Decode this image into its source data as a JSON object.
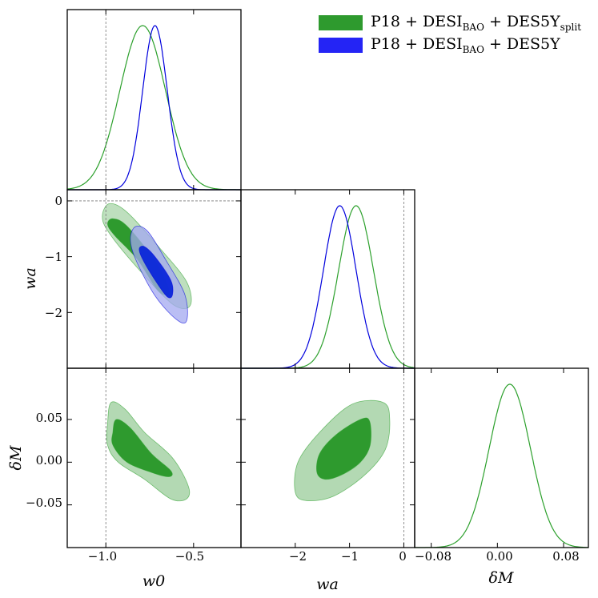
{
  "chart_data": {
    "type": "triangle",
    "parameters": [
      "w_0",
      "w_a",
      "δM"
    ],
    "axis_labels": {
      "w0": "w0",
      "wa": "wa",
      "dM": "δM"
    },
    "ranges": {
      "w0": [
        -1.22,
        -0.23
      ],
      "wa": [
        -3.0,
        0.2
      ],
      "dM": [
        -0.1,
        0.11
      ]
    },
    "ticks": {
      "w0": [
        {
          "v": -1.0,
          "label": "−1.0"
        },
        {
          "v": -0.5,
          "label": "−0.5"
        }
      ],
      "wa_left": [
        {
          "v": 0,
          "label": "0"
        },
        {
          "v": -1,
          "label": "−1"
        },
        {
          "v": -2,
          "label": "−2"
        }
      ],
      "wa_bottom": [
        {
          "v": -2,
          "label": "−2"
        },
        {
          "v": -1,
          "label": "−1"
        },
        {
          "v": 0,
          "label": "0"
        }
      ],
      "dM_left": [
        {
          "v": 0.05,
          "label": "0.05"
        },
        {
          "v": 0.0,
          "label": "0.00"
        },
        {
          "v": -0.05,
          "label": "−0.05"
        }
      ],
      "dM_bottom": [
        {
          "v": -0.08,
          "label": "−0.08"
        },
        {
          "v": 0.0,
          "label": "0.00"
        },
        {
          "v": 0.08,
          "label": "0.08"
        }
      ]
    },
    "reference_lines": {
      "w0": -1.0,
      "wa": 0.0
    },
    "series": [
      {
        "name": "P18 + DESI_BAO + DES5Y_split",
        "label_main": "P18 + DESI",
        "label_sub1": "BAO",
        "label_mid": " + DES5Y",
        "label_sub2": "split",
        "color": "#2ca02c",
        "fill_inner": "#2e9a2e",
        "fill_outer": "#b3d9b3",
        "w0": {
          "mean": -0.79,
          "sd": 0.13
        },
        "wa": {
          "mean": -0.88,
          "sd": 0.32
        },
        "dM": {
          "mean": 0.015,
          "sd": 0.025
        },
        "contours": {
          "w0_wa": {
            "inner": [
              [
                -0.99,
                -0.42
              ],
              [
                -0.96,
                -0.32
              ],
              [
                -0.88,
                -0.45
              ],
              [
                -0.72,
                -1.08
              ],
              [
                -0.64,
                -1.62
              ],
              [
                -0.7,
                -1.62
              ],
              [
                -0.82,
                -1.05
              ],
              [
                -0.95,
                -0.62
              ]
            ],
            "outer": [
              [
                -1.02,
                -0.28
              ],
              [
                -0.98,
                -0.05
              ],
              [
                -0.88,
                -0.2
              ],
              [
                -0.7,
                -0.82
              ],
              [
                -0.54,
                -1.45
              ],
              [
                -0.52,
                -1.88
              ],
              [
                -0.62,
                -1.85
              ],
              [
                -0.82,
                -1.2
              ],
              [
                -0.98,
                -0.58
              ]
            ]
          },
          "w0_dM": {
            "inner": [
              [
                -0.96,
                0.035
              ],
              [
                -0.94,
                0.05
              ],
              [
                -0.86,
                0.04
              ],
              [
                -0.74,
                0.01
              ],
              [
                -0.63,
                -0.01
              ],
              [
                -0.64,
                -0.017
              ],
              [
                -0.74,
                -0.012
              ],
              [
                -0.88,
                0.0
              ],
              [
                -0.96,
                0.02
              ]
            ],
            "outer": [
              [
                -0.99,
                0.045
              ],
              [
                -0.97,
                0.07
              ],
              [
                -0.89,
                0.062
              ],
              [
                -0.78,
                0.035
              ],
              [
                -0.62,
                0.005
              ],
              [
                -0.53,
                -0.028
              ],
              [
                -0.54,
                -0.043
              ],
              [
                -0.63,
                -0.043
              ],
              [
                -0.78,
                -0.02
              ],
              [
                -0.93,
                0.0
              ],
              [
                -0.99,
                0.02
              ]
            ]
          },
          "wa_dM": {
            "inner": [
              [
                -1.6,
                -0.012
              ],
              [
                -1.55,
                0.01
              ],
              [
                -1.25,
                0.032
              ],
              [
                -0.8,
                0.05
              ],
              [
                -0.63,
                0.048
              ],
              [
                -0.62,
                0.02
              ],
              [
                -0.8,
                0.0
              ],
              [
                -1.15,
                -0.015
              ],
              [
                -1.45,
                -0.02
              ]
            ],
            "outer": [
              [
                -2.0,
                -0.035
              ],
              [
                -1.95,
                0.0
              ],
              [
                -1.55,
                0.035
              ],
              [
                -0.95,
                0.068
              ],
              [
                -0.38,
                0.07
              ],
              [
                -0.26,
                0.05
              ],
              [
                -0.34,
                0.015
              ],
              [
                -0.72,
                -0.015
              ],
              [
                -1.3,
                -0.04
              ],
              [
                -1.8,
                -0.045
              ]
            ]
          }
        }
      },
      {
        "name": "P18 + DESI_BAO + DES5Y",
        "label_main": "P18 + DESI",
        "label_sub1": "BAO",
        "label_mid": " + DES5Y",
        "label_sub2": "",
        "color": "#0000dd",
        "fill_inner": "#0a26d9",
        "fill_outer": "#a3a8f0",
        "w0": {
          "mean": -0.72,
          "sd": 0.07
        },
        "wa": {
          "mean": -1.18,
          "sd": 0.3
        },
        "contours": {
          "w0_wa": {
            "inner": [
              [
                -0.81,
                -0.86
              ],
              [
                -0.78,
                -0.82
              ],
              [
                -0.72,
                -1.0
              ],
              [
                -0.63,
                -1.42
              ],
              [
                -0.62,
                -1.68
              ],
              [
                -0.65,
                -1.72
              ],
              [
                -0.72,
                -1.42
              ],
              [
                -0.79,
                -1.05
              ]
            ],
            "outer": [
              [
                -0.86,
                -0.68
              ],
              [
                -0.83,
                -0.46
              ],
              [
                -0.76,
                -0.55
              ],
              [
                -0.66,
                -1.05
              ],
              [
                -0.55,
                -1.68
              ],
              [
                -0.54,
                -2.15
              ],
              [
                -0.6,
                -2.12
              ],
              [
                -0.72,
                -1.7
              ],
              [
                -0.83,
                -1.05
              ]
            ]
          }
        }
      }
    ]
  }
}
